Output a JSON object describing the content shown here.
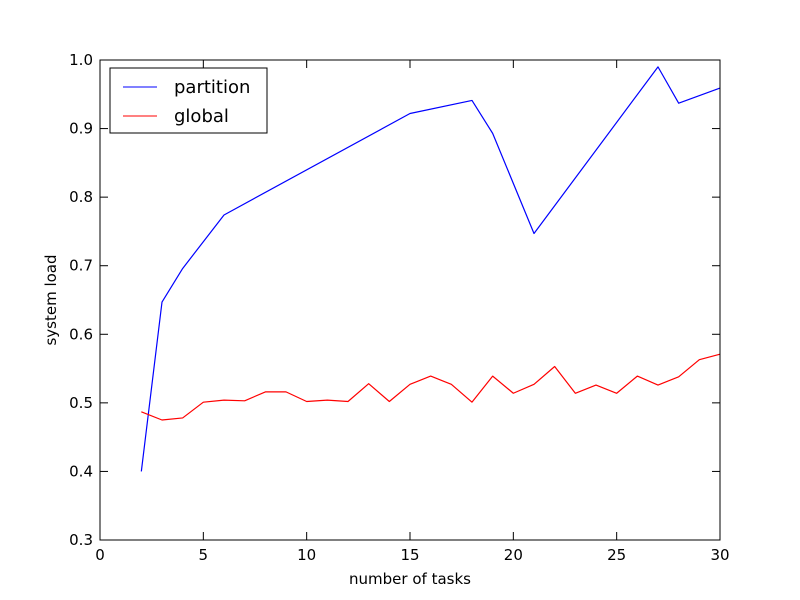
{
  "chart_data": {
    "type": "line",
    "xlabel": "number of tasks",
    "ylabel": "system load",
    "xlim": [
      0,
      30
    ],
    "ylim": [
      0.3,
      1.0
    ],
    "x_ticks": [
      0,
      5,
      10,
      15,
      20,
      25,
      30
    ],
    "x_tick_labels": [
      "0",
      "5",
      "10",
      "15",
      "20",
      "25",
      "30"
    ],
    "y_ticks": [
      0.3,
      0.4,
      0.5,
      0.6,
      0.7,
      0.8,
      0.9,
      1.0
    ],
    "y_tick_labels": [
      "0.3",
      "0.4",
      "0.5",
      "0.6",
      "0.7",
      "0.8",
      "0.9",
      "1.0"
    ],
    "grid": false,
    "legend_position": "top-left",
    "series": [
      {
        "name": "partition",
        "color": "#0000ff",
        "x": [
          2,
          3,
          4,
          6,
          15,
          18,
          19,
          21,
          27,
          28,
          30
        ],
        "y": [
          0.4,
          0.647,
          0.696,
          0.774,
          0.922,
          0.941,
          0.893,
          0.747,
          0.99,
          0.937,
          0.959
        ]
      },
      {
        "name": "global",
        "color": "#ff0000",
        "x": [
          2,
          3,
          4,
          5,
          6,
          7,
          8,
          9,
          10,
          11,
          12,
          13,
          14,
          15,
          16,
          17,
          18,
          19,
          20,
          21,
          22,
          23,
          24,
          25,
          26,
          27,
          28,
          29,
          30
        ],
        "y": [
          0.487,
          0.475,
          0.478,
          0.501,
          0.504,
          0.503,
          0.516,
          0.516,
          0.502,
          0.504,
          0.502,
          0.528,
          0.502,
          0.527,
          0.539,
          0.527,
          0.501,
          0.539,
          0.514,
          0.527,
          0.553,
          0.514,
          0.526,
          0.514,
          0.539,
          0.526,
          0.538,
          0.563,
          0.571
        ]
      }
    ]
  }
}
